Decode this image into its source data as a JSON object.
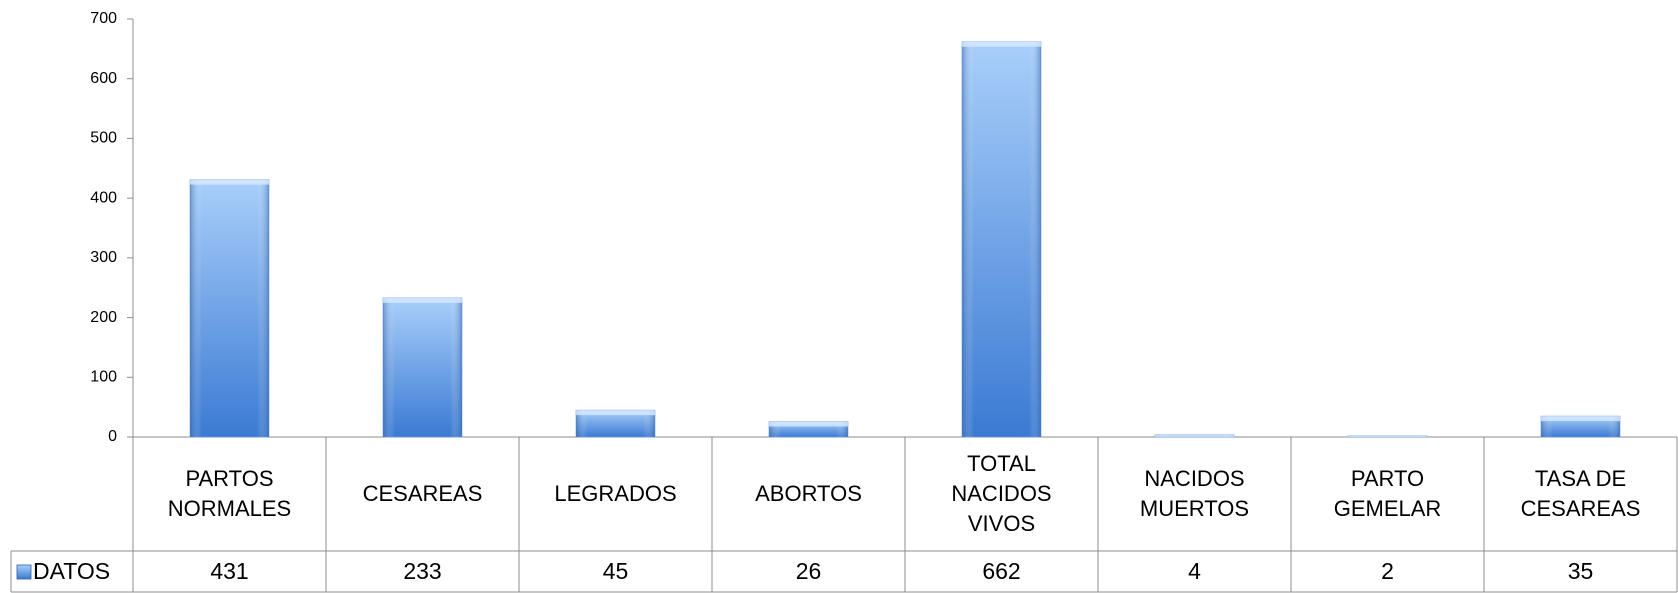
{
  "chart_data": {
    "type": "bar",
    "categories": [
      "PARTOS NORMALES",
      "CESAREAS",
      "LEGRADOS",
      "ABORTOS",
      "TOTAL NACIDOS VIVOS",
      "NACIDOS MUERTOS",
      "PARTO GEMELAR",
      "TASA DE CESAREAS"
    ],
    "series": [
      {
        "name": "DATOS",
        "color": "#4a86d8",
        "values": [
          431,
          233,
          45,
          26,
          662,
          4,
          2,
          35
        ]
      }
    ],
    "ylim": [
      0,
      700
    ],
    "yticks": [
      0,
      100,
      200,
      300,
      400,
      500,
      600,
      700
    ],
    "grid": false
  }
}
